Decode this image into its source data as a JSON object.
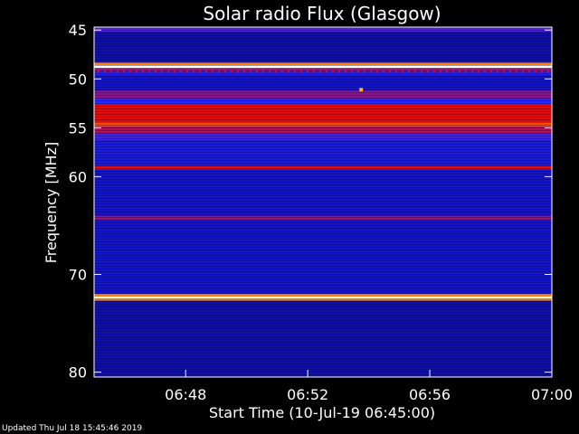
{
  "chart_data": {
    "type": "heatmap",
    "title": "Solar radio Flux (Glasgow)",
    "xlabel": "Start Time (10-Jul-19 06:45:00)",
    "ylabel": "Frequency [MHz]",
    "x_range": [
      "06:45",
      "07:00"
    ],
    "x_ticks": [
      "06:48",
      "06:52",
      "06:56",
      "07:00"
    ],
    "y_range": [
      44.7,
      80.5
    ],
    "y_ticks": [
      45,
      50,
      55,
      60,
      70,
      80
    ],
    "y_tick_labels": [
      "45",
      "50",
      "55",
      "60",
      "70",
      "80"
    ],
    "colormap": "blue-red-yellow-white",
    "bands": [
      {
        "freq_start": 44.7,
        "freq_end": 45.2,
        "level": 0.3
      },
      {
        "freq_start": 45.2,
        "freq_end": 48.3,
        "level": 0.08
      },
      {
        "freq_start": 48.3,
        "freq_end": 48.6,
        "level": 0.75
      },
      {
        "freq_start": 48.6,
        "freq_end": 48.9,
        "level": 1.0
      },
      {
        "freq_start": 48.9,
        "freq_end": 49.2,
        "level": 0.4
      },
      {
        "freq_start": 49.2,
        "freq_end": 49.6,
        "level": 0.2
      },
      {
        "freq_start": 49.6,
        "freq_end": 51.2,
        "level": 0.1
      },
      {
        "freq_start": 51.2,
        "freq_end": 52.0,
        "level": 0.38
      },
      {
        "freq_start": 52.0,
        "freq_end": 52.6,
        "level": 0.25
      },
      {
        "freq_start": 52.6,
        "freq_end": 54.4,
        "level": 0.55
      },
      {
        "freq_start": 54.4,
        "freq_end": 54.9,
        "level": 0.68
      },
      {
        "freq_start": 54.9,
        "freq_end": 55.6,
        "level": 0.45
      },
      {
        "freq_start": 55.6,
        "freq_end": 56.3,
        "level": 0.28
      },
      {
        "freq_start": 56.3,
        "freq_end": 58.9,
        "level": 0.15
      },
      {
        "freq_start": 58.9,
        "freq_end": 59.3,
        "level": 0.55
      },
      {
        "freq_start": 59.3,
        "freq_end": 64.0,
        "level": 0.1
      },
      {
        "freq_start": 64.0,
        "freq_end": 64.4,
        "level": 0.4
      },
      {
        "freq_start": 64.4,
        "freq_end": 72.0,
        "level": 0.1
      },
      {
        "freq_start": 72.0,
        "freq_end": 72.2,
        "level": 0.75
      },
      {
        "freq_start": 72.2,
        "freq_end": 72.5,
        "level": 0.95
      },
      {
        "freq_start": 72.5,
        "freq_end": 72.7,
        "level": 0.75
      },
      {
        "freq_start": 72.7,
        "freq_end": 80.5,
        "level": 0.08
      }
    ],
    "spikes": [
      {
        "time": "06:53:45",
        "freq": 51.1
      }
    ],
    "updated_label": "Updated Thu Jul 18 15:45:46 2019"
  }
}
